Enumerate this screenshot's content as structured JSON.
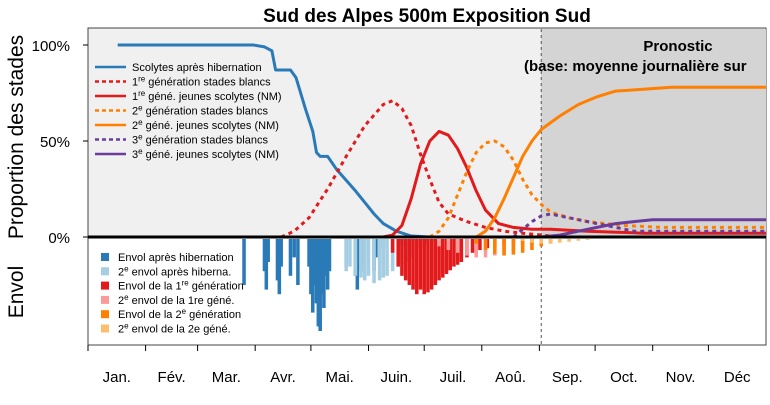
{
  "chart_data": {
    "title": "Sud des Alpes 500m Exposition Sud",
    "type": "line",
    "ylabel_top": "Proportion des stades",
    "ylabel_bottom": "Envol",
    "yticks": [
      "100%",
      "50%",
      "0%"
    ],
    "months": [
      "Jan.",
      "Fév.",
      "Mar.",
      "Avr.",
      "Mai.",
      "Juin.",
      "Juil.",
      "Aoû.",
      "Sep.",
      "Oct.",
      "Nov.",
      "Déc"
    ],
    "x_unit": "day of year",
    "xlim": [
      1,
      366
    ],
    "ylim_top": [
      0,
      1.05
    ],
    "forecast": {
      "start_day": 245,
      "label_line1": "Pronostic",
      "label_line2": "(base: moyenne journalière sur"
    },
    "colors": {
      "blue": "#2a7ab8",
      "red": "#e31a1c",
      "orange": "#ff7f00",
      "purple": "#6a3d9a",
      "light_blue": "#a6cee3",
      "pink": "#fb9a99",
      "light_orange": "#fdbf6f",
      "panel_bg": "#f0f0f0",
      "forecast_bg": "#d4d4d4"
    },
    "series": [
      {
        "key": "s_hib",
        "name": "Scolytes après hibernation",
        "color": "#2a7ab8",
        "dash": false,
        "points": [
          [
            17,
            1.0
          ],
          [
            90,
            1.0
          ],
          [
            96,
            0.99
          ],
          [
            100,
            0.97
          ],
          [
            102,
            0.87
          ],
          [
            110,
            0.87
          ],
          [
            113,
            0.83
          ],
          [
            118,
            0.67
          ],
          [
            122,
            0.55
          ],
          [
            124,
            0.44
          ],
          [
            126,
            0.42
          ],
          [
            130,
            0.42
          ],
          [
            135,
            0.35
          ],
          [
            145,
            0.24
          ],
          [
            150,
            0.18
          ],
          [
            155,
            0.12
          ],
          [
            160,
            0.07
          ],
          [
            167,
            0.03
          ],
          [
            175,
            0.005
          ],
          [
            185,
            0.0
          ],
          [
            366,
            0.0
          ]
        ]
      },
      {
        "key": "g1_white",
        "name": "1re génération stades blancs",
        "color": "#e31a1c",
        "dash": true,
        "points": [
          [
            105,
            0.0
          ],
          [
            112,
            0.03
          ],
          [
            120,
            0.1
          ],
          [
            130,
            0.25
          ],
          [
            140,
            0.42
          ],
          [
            150,
            0.58
          ],
          [
            160,
            0.69
          ],
          [
            165,
            0.71
          ],
          [
            170,
            0.67
          ],
          [
            175,
            0.58
          ],
          [
            180,
            0.43
          ],
          [
            185,
            0.3
          ],
          [
            190,
            0.18
          ],
          [
            195,
            0.12
          ],
          [
            200,
            0.1
          ],
          [
            205,
            0.08
          ],
          [
            215,
            0.05
          ],
          [
            225,
            0.03
          ],
          [
            235,
            0.02
          ],
          [
            250,
            0.005
          ],
          [
            260,
            0.0
          ],
          [
            366,
            0.0
          ]
        ]
      },
      {
        "key": "g1_adult",
        "name": "1re géné. jeunes scolytes (NM)",
        "color": "#e31a1c",
        "dash": false,
        "points": [
          [
            160,
            0.0
          ],
          [
            165,
            0.01
          ],
          [
            170,
            0.06
          ],
          [
            175,
            0.2
          ],
          [
            180,
            0.38
          ],
          [
            185,
            0.5
          ],
          [
            190,
            0.55
          ],
          [
            195,
            0.53
          ],
          [
            200,
            0.46
          ],
          [
            205,
            0.36
          ],
          [
            210,
            0.24
          ],
          [
            215,
            0.14
          ],
          [
            222,
            0.07
          ],
          [
            230,
            0.05
          ],
          [
            240,
            0.04
          ],
          [
            250,
            0.04
          ],
          [
            270,
            0.03
          ],
          [
            300,
            0.02
          ],
          [
            366,
            0.02
          ]
        ]
      },
      {
        "key": "g2_white",
        "name": "2e génération stades blancs",
        "color": "#ff7f00",
        "dash": true,
        "points": [
          [
            185,
            0.0
          ],
          [
            190,
            0.03
          ],
          [
            195,
            0.1
          ],
          [
            200,
            0.22
          ],
          [
            205,
            0.34
          ],
          [
            210,
            0.44
          ],
          [
            215,
            0.49
          ],
          [
            220,
            0.5
          ],
          [
            225,
            0.47
          ],
          [
            230,
            0.4
          ],
          [
            235,
            0.3
          ],
          [
            240,
            0.22
          ],
          [
            245,
            0.17
          ],
          [
            250,
            0.13
          ],
          [
            260,
            0.1
          ],
          [
            270,
            0.08
          ],
          [
            280,
            0.07
          ],
          [
            290,
            0.06
          ],
          [
            310,
            0.05
          ],
          [
            366,
            0.05
          ]
        ]
      },
      {
        "key": "g2_adult",
        "name": "2e géné. jeunes scolytes (NM)",
        "color": "#ff7f00",
        "dash": false,
        "points": [
          [
            210,
            0.0
          ],
          [
            215,
            0.03
          ],
          [
            220,
            0.1
          ],
          [
            225,
            0.2
          ],
          [
            230,
            0.31
          ],
          [
            235,
            0.42
          ],
          [
            240,
            0.5
          ],
          [
            245,
            0.56
          ],
          [
            255,
            0.63
          ],
          [
            265,
            0.69
          ],
          [
            275,
            0.73
          ],
          [
            285,
            0.76
          ],
          [
            300,
            0.77
          ],
          [
            315,
            0.78
          ],
          [
            366,
            0.78
          ]
        ]
      },
      {
        "key": "g3_white",
        "name": "3e génération stades blancs",
        "color": "#6a3d9a",
        "dash": true,
        "points": [
          [
            230,
            0.0
          ],
          [
            235,
            0.04
          ],
          [
            240,
            0.08
          ],
          [
            245,
            0.11
          ],
          [
            250,
            0.12
          ],
          [
            255,
            0.11
          ],
          [
            265,
            0.09
          ],
          [
            275,
            0.07
          ],
          [
            285,
            0.05
          ],
          [
            295,
            0.03
          ],
          [
            310,
            0.03
          ],
          [
            330,
            0.03
          ],
          [
            366,
            0.03
          ]
        ]
      },
      {
        "key": "g3_adult",
        "name": "3e géné. jeunes scolytes (NM)",
        "color": "#6a3d9a",
        "dash": false,
        "points": [
          [
            245,
            0.0
          ],
          [
            255,
            0.01
          ],
          [
            265,
            0.03
          ],
          [
            275,
            0.05
          ],
          [
            285,
            0.07
          ],
          [
            295,
            0.08
          ],
          [
            305,
            0.09
          ],
          [
            330,
            0.09
          ],
          [
            366,
            0.09
          ]
        ]
      }
    ],
    "legend_top": [
      {
        "key": "s_hib",
        "pre": "Scolytes après hibernation",
        "sup": "",
        "post": ""
      },
      {
        "key": "g1_white",
        "pre": "1",
        "sup": "re",
        "post": " génération stades blancs"
      },
      {
        "key": "g1_adult",
        "pre": "1",
        "sup": "re",
        "post": " géné. jeunes scolytes (NM)"
      },
      {
        "key": "g2_white",
        "pre": "2",
        "sup": "e",
        "post": " génération stades blancs"
      },
      {
        "key": "g2_adult",
        "pre": "2",
        "sup": "e",
        "post": " géné. jeunes scolytes (NM)"
      },
      {
        "key": "g3_white",
        "pre": "3",
        "sup": "e",
        "post": " génération stades blancs"
      },
      {
        "key": "g3_adult",
        "pre": "3",
        "sup": "e",
        "post": " géné. jeunes scolytes (NM)"
      }
    ],
    "flight_series": [
      {
        "key": "f_hib",
        "color": "#2a7ab8",
        "pre": "Envol après hibernation",
        "sup": "",
        "post": ""
      },
      {
        "key": "f_hib2",
        "color": "#a6cee3",
        "pre": "2",
        "sup": "e",
        "post": " envol après hiberna."
      },
      {
        "key": "f_g1",
        "color": "#e31a1c",
        "pre": "Envol de la 1",
        "sup": "re",
        "post": " génération"
      },
      {
        "key": "f_g1b",
        "color": "#fb9a99",
        "pre": "2",
        "sup": "e",
        "post": " envol de la 1re géné."
      },
      {
        "key": "f_g2",
        "color": "#ff7f00",
        "pre": "Envol de la 2",
        "sup": "e",
        "post": " génération"
      },
      {
        "key": "f_g2b",
        "color": "#fdbf6f",
        "pre": "2",
        "sup": "e",
        "post": " envol de la 2e géné."
      }
    ],
    "flight_bars": [
      {
        "key": "f_hib",
        "bars": [
          [
            85,
            0.5
          ],
          [
            96,
            0.35
          ],
          [
            97,
            0.55
          ],
          [
            98,
            0.25
          ],
          [
            103,
            0.45
          ],
          [
            104,
            0.6
          ],
          [
            105,
            0.3
          ],
          [
            110,
            0.4
          ],
          [
            112,
            0.2
          ],
          [
            114,
            0.5
          ],
          [
            120,
            0.3
          ],
          [
            121,
            0.6
          ],
          [
            122,
            0.8
          ],
          [
            123,
            0.5
          ],
          [
            124,
            0.7
          ],
          [
            125,
            0.95
          ],
          [
            126,
            1.0
          ],
          [
            127,
            0.6
          ],
          [
            128,
            0.75
          ],
          [
            129,
            0.4
          ],
          [
            130,
            0.55
          ],
          [
            131,
            0.35
          ],
          [
            140,
            0.3
          ],
          [
            145,
            0.4
          ],
          [
            146,
            0.55
          ],
          [
            148,
            0.35
          ],
          [
            150,
            0.25
          ],
          [
            155,
            0.35
          ],
          [
            156,
            0.2
          ],
          [
            160,
            0.1
          ],
          [
            165,
            0.12
          ],
          [
            170,
            0.08
          ]
        ]
      },
      {
        "key": "f_hib2",
        "bars": [
          [
            140,
            0.35
          ],
          [
            142,
            0.3
          ],
          [
            145,
            0.4
          ],
          [
            148,
            0.42
          ],
          [
            150,
            0.45
          ],
          [
            152,
            0.4
          ],
          [
            155,
            0.48
          ],
          [
            158,
            0.45
          ],
          [
            160,
            0.42
          ],
          [
            162,
            0.4
          ],
          [
            165,
            0.35
          ],
          [
            168,
            0.3
          ],
          [
            170,
            0.28
          ],
          [
            173,
            0.25
          ],
          [
            175,
            0.2
          ],
          [
            178,
            0.15
          ],
          [
            180,
            0.1
          ],
          [
            183,
            0.06
          ]
        ]
      },
      {
        "key": "f_g1",
        "bars": [
          [
            165,
            0.15
          ],
          [
            168,
            0.3
          ],
          [
            170,
            0.4
          ],
          [
            172,
            0.45
          ],
          [
            174,
            0.5
          ],
          [
            176,
            0.55
          ],
          [
            178,
            0.6
          ],
          [
            180,
            0.55
          ],
          [
            182,
            0.6
          ],
          [
            184,
            0.58
          ],
          [
            186,
            0.55
          ],
          [
            188,
            0.5
          ],
          [
            190,
            0.45
          ],
          [
            192,
            0.42
          ],
          [
            194,
            0.38
          ],
          [
            196,
            0.34
          ],
          [
            198,
            0.3
          ],
          [
            200,
            0.28
          ],
          [
            202,
            0.25
          ],
          [
            205,
            0.2
          ],
          [
            208,
            0.15
          ],
          [
            212,
            0.12
          ],
          [
            216,
            0.1
          ],
          [
            220,
            0.08
          ],
          [
            225,
            0.06
          ],
          [
            230,
            0.05
          ],
          [
            235,
            0.04
          ],
          [
            240,
            0.03
          ],
          [
            245,
            0.02
          ]
        ]
      },
      {
        "key": "f_g1b",
        "bars": [
          [
            190,
            0.08
          ],
          [
            195,
            0.12
          ],
          [
            200,
            0.15
          ],
          [
            205,
            0.18
          ],
          [
            210,
            0.2
          ],
          [
            215,
            0.2
          ],
          [
            220,
            0.18
          ],
          [
            225,
            0.16
          ],
          [
            230,
            0.13
          ],
          [
            235,
            0.1
          ],
          [
            240,
            0.07
          ],
          [
            245,
            0.05
          ],
          [
            250,
            0.03
          ]
        ]
      },
      {
        "key": "f_g2",
        "bars": [
          [
            210,
            0.05
          ],
          [
            215,
            0.12
          ],
          [
            220,
            0.16
          ],
          [
            225,
            0.18
          ],
          [
            230,
            0.17
          ],
          [
            235,
            0.15
          ],
          [
            240,
            0.12
          ],
          [
            245,
            0.08
          ],
          [
            250,
            0.05
          ],
          [
            255,
            0.03
          ]
        ]
      },
      {
        "key": "f_g2b",
        "bars": [
          [
            235,
            0.02
          ],
          [
            240,
            0.04
          ],
          [
            245,
            0.05
          ],
          [
            250,
            0.05
          ],
          [
            255,
            0.04
          ],
          [
            260,
            0.03
          ],
          [
            265,
            0.02
          ],
          [
            270,
            0.01
          ]
        ]
      }
    ]
  }
}
